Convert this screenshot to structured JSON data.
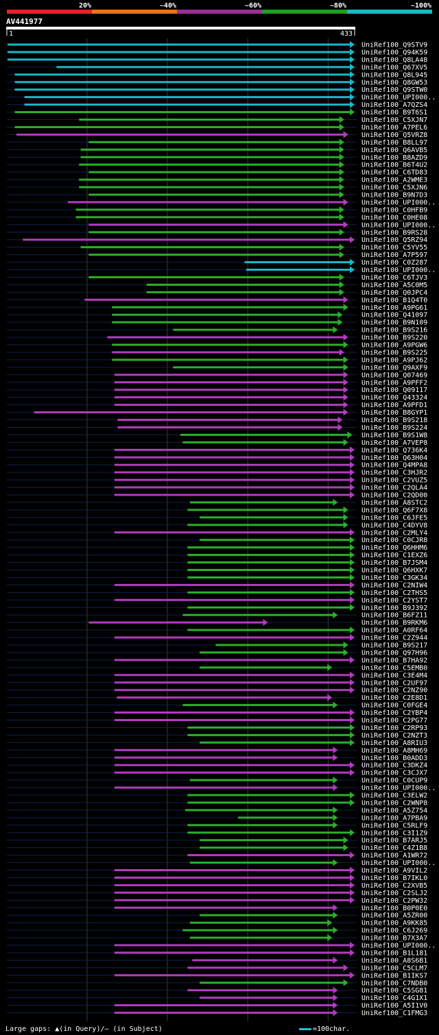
{
  "chart_data": {
    "type": "alignment-overview",
    "query_name": "AV441977",
    "query_start": 1,
    "query_end": 433,
    "identity_legend": [
      {
        "label": "20%",
        "color": "#e8202a"
      },
      {
        "label": "~40%",
        "color": "#e8731a"
      },
      {
        "label": "~60%",
        "color": "#9a2d98"
      },
      {
        "label": "~80%",
        "color": "#1e9e1e"
      },
      {
        "label": "~100%",
        "color": "#19b8c8"
      }
    ],
    "bin_colors": {
      "cyan": "#19b8c8",
      "green": "#2bb02b",
      "purple": "#b23cc0"
    },
    "hits": [
      {
        "name": "UniRef100_Q9STV9",
        "start": 1,
        "end": 433,
        "bin": "cyan"
      },
      {
        "name": "UniRef100_Q94K59",
        "start": 1,
        "end": 433,
        "bin": "cyan"
      },
      {
        "name": "UniRef100_Q8LA48",
        "start": 1,
        "end": 433,
        "bin": "cyan"
      },
      {
        "name": "UniRef100_Q67XV5",
        "start": 62,
        "end": 433,
        "bin": "cyan"
      },
      {
        "name": "UniRef100_Q8L945",
        "start": 10,
        "end": 433,
        "bin": "cyan"
      },
      {
        "name": "UniRef100_Q8GW53",
        "start": 10,
        "end": 433,
        "bin": "cyan"
      },
      {
        "name": "UniRef100_Q9STW0",
        "start": 10,
        "end": 433,
        "bin": "cyan"
      },
      {
        "name": "UniRef100_UPI000..",
        "start": 22,
        "end": 433,
        "bin": "cyan"
      },
      {
        "name": "UniRef100_A7QZS4",
        "start": 22,
        "end": 433,
        "bin": "cyan"
      },
      {
        "name": "UniRef100_B9T6S1",
        "start": 10,
        "end": 433,
        "bin": "green"
      },
      {
        "name": "UniRef100_C5XJN7",
        "start": 90,
        "end": 420,
        "bin": "green"
      },
      {
        "name": "UniRef100_A7PEL6",
        "start": 10,
        "end": 420,
        "bin": "green"
      },
      {
        "name": "UniRef100_Q5VRZ8",
        "start": 12,
        "end": 425,
        "bin": "purple"
      },
      {
        "name": "UniRef100_B8LL97",
        "start": 102,
        "end": 420,
        "bin": "green"
      },
      {
        "name": "UniRef100_Q6AVB5",
        "start": 92,
        "end": 420,
        "bin": "green"
      },
      {
        "name": "UniRef100_B8AZD9",
        "start": 92,
        "end": 420,
        "bin": "green"
      },
      {
        "name": "UniRef100_B6T4U2",
        "start": 90,
        "end": 420,
        "bin": "green"
      },
      {
        "name": "UniRef100_C6TD83",
        "start": 102,
        "end": 420,
        "bin": "green"
      },
      {
        "name": "UniRef100_A2WME3",
        "start": 90,
        "end": 420,
        "bin": "green"
      },
      {
        "name": "UniRef100_C5XJN6",
        "start": 90,
        "end": 420,
        "bin": "green"
      },
      {
        "name": "UniRef100_B9N7D3",
        "start": 102,
        "end": 420,
        "bin": "green"
      },
      {
        "name": "UniRef100_UPI000..",
        "start": 76,
        "end": 425,
        "bin": "purple"
      },
      {
        "name": "UniRef100_C0HFB9",
        "start": 86,
        "end": 420,
        "bin": "green"
      },
      {
        "name": "UniRef100_C0HE08",
        "start": 86,
        "end": 420,
        "bin": "green"
      },
      {
        "name": "UniRef100_UPI000..",
        "start": 102,
        "end": 425,
        "bin": "purple"
      },
      {
        "name": "UniRef100_B9RS28",
        "start": 102,
        "end": 420,
        "bin": "green"
      },
      {
        "name": "UniRef100_Q5RZ94",
        "start": 20,
        "end": 433,
        "bin": "purple"
      },
      {
        "name": "UniRef100_C5YV55",
        "start": 92,
        "end": 420,
        "bin": "green"
      },
      {
        "name": "UniRef100_A7P597",
        "start": 102,
        "end": 420,
        "bin": "green"
      },
      {
        "name": "UniRef100_C0Z287",
        "start": 296,
        "end": 433,
        "bin": "cyan"
      },
      {
        "name": "UniRef100_UPI000..",
        "start": 298,
        "end": 433,
        "bin": "cyan"
      },
      {
        "name": "UniRef100_C6TJV3",
        "start": 102,
        "end": 420,
        "bin": "green"
      },
      {
        "name": "UniRef100_A5C0M5",
        "start": 174,
        "end": 420,
        "bin": "green"
      },
      {
        "name": "UniRef100_Q0JPC4",
        "start": 174,
        "end": 420,
        "bin": "green"
      },
      {
        "name": "UniRef100_B1Q4T0",
        "start": 97,
        "end": 425,
        "bin": "purple"
      },
      {
        "name": "UniRef100_A9PG61",
        "start": 131,
        "end": 425,
        "bin": "green"
      },
      {
        "name": "UniRef100_Q41097",
        "start": 131,
        "end": 418,
        "bin": "green"
      },
      {
        "name": "UniRef100_B9N109",
        "start": 131,
        "end": 418,
        "bin": "green"
      },
      {
        "name": "UniRef100_B9S216",
        "start": 207,
        "end": 412,
        "bin": "green"
      },
      {
        "name": "UniRef100_B9S220",
        "start": 125,
        "end": 425,
        "bin": "purple"
      },
      {
        "name": "UniRef100_A9PGW6",
        "start": 131,
        "end": 425,
        "bin": "green"
      },
      {
        "name": "UniRef100_B9S225",
        "start": 131,
        "end": 420,
        "bin": "purple"
      },
      {
        "name": "UniRef100_A9PJ62",
        "start": 131,
        "end": 425,
        "bin": "green"
      },
      {
        "name": "UniRef100_Q9AXF9",
        "start": 207,
        "end": 425,
        "bin": "green"
      },
      {
        "name": "UniRef100_Q07469",
        "start": 134,
        "end": 425,
        "bin": "purple"
      },
      {
        "name": "UniRef100_A9PFF2",
        "start": 134,
        "end": 425,
        "bin": "purple"
      },
      {
        "name": "UniRef100_Q09117",
        "start": 134,
        "end": 425,
        "bin": "purple"
      },
      {
        "name": "UniRef100_Q43324",
        "start": 134,
        "end": 425,
        "bin": "purple"
      },
      {
        "name": "UniRef100_A9PFD1",
        "start": 134,
        "end": 425,
        "bin": "purple"
      },
      {
        "name": "UniRef100_B8GYP1",
        "start": 34,
        "end": 425,
        "bin": "purple"
      },
      {
        "name": "UniRef100_B9S218",
        "start": 138,
        "end": 418,
        "bin": "purple"
      },
      {
        "name": "UniRef100_B9S224",
        "start": 138,
        "end": 418,
        "bin": "purple"
      },
      {
        "name": "UniRef100_B9S1W8",
        "start": 216,
        "end": 430,
        "bin": "green"
      },
      {
        "name": "UniRef100_A7VEP8",
        "start": 219,
        "end": 425,
        "bin": "green"
      },
      {
        "name": "UniRef100_Q736K4",
        "start": 134,
        "end": 433,
        "bin": "purple"
      },
      {
        "name": "UniRef100_Q63H04",
        "start": 134,
        "end": 433,
        "bin": "purple"
      },
      {
        "name": "UniRef100_Q4MPA8",
        "start": 134,
        "end": 433,
        "bin": "purple"
      },
      {
        "name": "UniRef100_C3HJR2",
        "start": 134,
        "end": 433,
        "bin": "purple"
      },
      {
        "name": "UniRef100_C2VUZ5",
        "start": 134,
        "end": 433,
        "bin": "purple"
      },
      {
        "name": "UniRef100_C2QLA4",
        "start": 134,
        "end": 433,
        "bin": "purple"
      },
      {
        "name": "UniRef100_C2QD00",
        "start": 134,
        "end": 433,
        "bin": "purple"
      },
      {
        "name": "UniRef100_A8STC2",
        "start": 228,
        "end": 412,
        "bin": "green"
      },
      {
        "name": "UniRef100_Q6F7X8",
        "start": 225,
        "end": 425,
        "bin": "green"
      },
      {
        "name": "UniRef100_C6JFE5",
        "start": 240,
        "end": 425,
        "bin": "green"
      },
      {
        "name": "UniRef100_C4DYV8",
        "start": 225,
        "end": 425,
        "bin": "green"
      },
      {
        "name": "UniRef100_C2MLY4",
        "start": 134,
        "end": 433,
        "bin": "purple"
      },
      {
        "name": "UniRef100_C0CJR8",
        "start": 240,
        "end": 433,
        "bin": "green"
      },
      {
        "name": "UniRef100_Q6HHM6",
        "start": 225,
        "end": 433,
        "bin": "green"
      },
      {
        "name": "UniRef100_C1EXZ6",
        "start": 225,
        "end": 433,
        "bin": "green"
      },
      {
        "name": "UniRef100_B7JSM4",
        "start": 225,
        "end": 433,
        "bin": "green"
      },
      {
        "name": "UniRef100_Q6HXK7",
        "start": 225,
        "end": 433,
        "bin": "green"
      },
      {
        "name": "UniRef100_C3GK34",
        "start": 225,
        "end": 433,
        "bin": "green"
      },
      {
        "name": "UniRef100_C2NIW4",
        "start": 134,
        "end": 433,
        "bin": "purple"
      },
      {
        "name": "UniRef100_C2THS5",
        "start": 225,
        "end": 433,
        "bin": "green"
      },
      {
        "name": "UniRef100_C2YST7",
        "start": 134,
        "end": 433,
        "bin": "purple"
      },
      {
        "name": "UniRef100_B9J392",
        "start": 225,
        "end": 433,
        "bin": "green"
      },
      {
        "name": "UniRef100_B6FZ11",
        "start": 219,
        "end": 412,
        "bin": "green"
      },
      {
        "name": "UniRef100_B9RKM6",
        "start": 102,
        "end": 325,
        "bin": "purple"
      },
      {
        "name": "UniRef100_A0RF64",
        "start": 225,
        "end": 433,
        "bin": "green"
      },
      {
        "name": "UniRef100_C2Z944",
        "start": 134,
        "end": 433,
        "bin": "purple"
      },
      {
        "name": "UniRef100_B9S217",
        "start": 260,
        "end": 425,
        "bin": "green"
      },
      {
        "name": "UniRef100_Q97H96",
        "start": 240,
        "end": 425,
        "bin": "green"
      },
      {
        "name": "UniRef100_B7HA92",
        "start": 134,
        "end": 433,
        "bin": "purple"
      },
      {
        "name": "UniRef100_C5EMB0",
        "start": 240,
        "end": 405,
        "bin": "green"
      },
      {
        "name": "UniRef100_C3E4M4",
        "start": 134,
        "end": 433,
        "bin": "purple"
      },
      {
        "name": "UniRef100_C2UF97",
        "start": 134,
        "end": 433,
        "bin": "purple"
      },
      {
        "name": "UniRef100_C2NZ90",
        "start": 134,
        "end": 433,
        "bin": "purple"
      },
      {
        "name": "UniRef100_C2E8D1",
        "start": 137,
        "end": 405,
        "bin": "purple"
      },
      {
        "name": "UniRef100_C0FGE4",
        "start": 219,
        "end": 412,
        "bin": "green"
      },
      {
        "name": "UniRef100_C2YBP4",
        "start": 134,
        "end": 433,
        "bin": "purple"
      },
      {
        "name": "UniRef100_C2PG77",
        "start": 134,
        "end": 433,
        "bin": "purple"
      },
      {
        "name": "UniRef100_C2RP93",
        "start": 225,
        "end": 433,
        "bin": "green"
      },
      {
        "name": "UniRef100_C2NZT3",
        "start": 225,
        "end": 433,
        "bin": "green"
      },
      {
        "name": "UniRef100_A8RIU3",
        "start": 240,
        "end": 433,
        "bin": "green"
      },
      {
        "name": "UniRef100_A8MH69",
        "start": 134,
        "end": 412,
        "bin": "purple"
      },
      {
        "name": "UniRef100_B0ADD3",
        "start": 134,
        "end": 412,
        "bin": "purple"
      },
      {
        "name": "UniRef100_C3DKZ4",
        "start": 134,
        "end": 433,
        "bin": "purple"
      },
      {
        "name": "UniRef100_C3CJX7",
        "start": 134,
        "end": 433,
        "bin": "purple"
      },
      {
        "name": "UniRef100_C0CUP9",
        "start": 228,
        "end": 412,
        "bin": "green"
      },
      {
        "name": "UniRef100_UPI000..",
        "start": 134,
        "end": 412,
        "bin": "purple"
      },
      {
        "name": "UniRef100_C3ELW2",
        "start": 225,
        "end": 433,
        "bin": "green"
      },
      {
        "name": "UniRef100_C2WNP8",
        "start": 225,
        "end": 433,
        "bin": "green"
      },
      {
        "name": "UniRef100_A5Z754",
        "start": 222,
        "end": 412,
        "bin": "green"
      },
      {
        "name": "UniRef100_A7PBA9",
        "start": 288,
        "end": 412,
        "bin": "green"
      },
      {
        "name": "UniRef100_C5RLF9",
        "start": 225,
        "end": 412,
        "bin": "green"
      },
      {
        "name": "UniRef100_C3I1Z9",
        "start": 225,
        "end": 433,
        "bin": "green"
      },
      {
        "name": "UniRef100_B7ARJ5",
        "start": 240,
        "end": 425,
        "bin": "green"
      },
      {
        "name": "UniRef100_C4Z1B8",
        "start": 240,
        "end": 425,
        "bin": "green"
      },
      {
        "name": "UniRef100_A1WR72",
        "start": 225,
        "end": 433,
        "bin": "purple"
      },
      {
        "name": "UniRef100_UPI000..",
        "start": 228,
        "end": 412,
        "bin": "green"
      },
      {
        "name": "UniRef100_A9VIL2",
        "start": 134,
        "end": 433,
        "bin": "purple"
      },
      {
        "name": "UniRef100_B7IKL0",
        "start": 134,
        "end": 433,
        "bin": "purple"
      },
      {
        "name": "UniRef100_C2XVB5",
        "start": 134,
        "end": 433,
        "bin": "purple"
      },
      {
        "name": "UniRef100_C2SLJ2",
        "start": 134,
        "end": 433,
        "bin": "purple"
      },
      {
        "name": "UniRef100_C2PW32",
        "start": 134,
        "end": 433,
        "bin": "purple"
      },
      {
        "name": "UniRef100_B0P0E0",
        "start": 134,
        "end": 412,
        "bin": "purple"
      },
      {
        "name": "UniRef100_A5ZR00",
        "start": 240,
        "end": 412,
        "bin": "green"
      },
      {
        "name": "UniRef100_A9KK85",
        "start": 228,
        "end": 405,
        "bin": "green"
      },
      {
        "name": "UniRef100_C6J269",
        "start": 219,
        "end": 412,
        "bin": "green"
      },
      {
        "name": "UniRef100_B7X3A7",
        "start": 228,
        "end": 405,
        "bin": "green"
      },
      {
        "name": "UniRef100_UPI000..",
        "start": 134,
        "end": 433,
        "bin": "purple"
      },
      {
        "name": "UniRef100_B1L181",
        "start": 134,
        "end": 433,
        "bin": "purple"
      },
      {
        "name": "UniRef100_A8S6B1",
        "start": 231,
        "end": 412,
        "bin": "purple"
      },
      {
        "name": "UniRef100_C5CLM7",
        "start": 225,
        "end": 425,
        "bin": "purple"
      },
      {
        "name": "UniRef100_B1IKS7",
        "start": 134,
        "end": 433,
        "bin": "purple"
      },
      {
        "name": "UniRef100_C7NDB0",
        "start": 240,
        "end": 425,
        "bin": "green"
      },
      {
        "name": "UniRef100_C5SG81",
        "start": 225,
        "end": 412,
        "bin": "purple"
      },
      {
        "name": "UniRef100_C4G1X1",
        "start": 240,
        "end": 412,
        "bin": "purple"
      },
      {
        "name": "UniRef100_A5I1V0",
        "start": 134,
        "end": 412,
        "bin": "purple"
      },
      {
        "name": "UniRef100_C1FMG3",
        "start": 134,
        "end": 412,
        "bin": "purple"
      }
    ]
  },
  "footer": {
    "gaps_legend": "Large gaps: ▲(in Query)/– (in Subject)",
    "scale_legend": "=100char."
  }
}
